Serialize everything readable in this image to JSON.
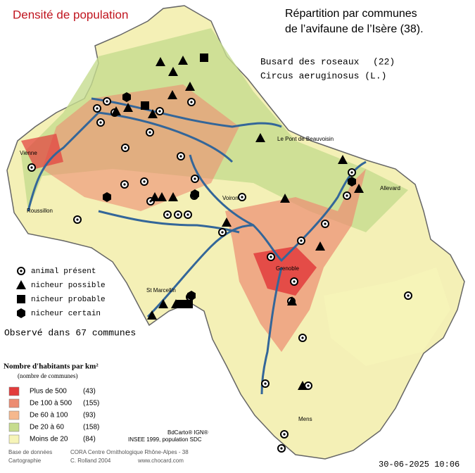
{
  "title": "Densité de population",
  "heading": [
    "Répartition par communes",
    "de l’avifaune de l’Isère (38)."
  ],
  "species": {
    "common": "Busard des roseaux",
    "count": "(22)",
    "latin": "Circus aeruginosus (L.)"
  },
  "symbol_legend": [
    "animal présent",
    "nicheur possible",
    "nicheur probable",
    "nicheur certain"
  ],
  "observed": "Observé dans 67 communes",
  "density_legend": {
    "title": "Nombre d'habitants par km²",
    "subtitle": "(nombre de communes)",
    "items": [
      {
        "label": "Plus de 500",
        "count": "(43)",
        "color": "#e23c3c"
      },
      {
        "label": "De 100 à 500",
        "count": "(155)",
        "color": "#ec8c72"
      },
      {
        "label": "De 60 à 100",
        "count": "(93)",
        "color": "#f5b88e"
      },
      {
        "label": "De 20 à 60",
        "count": "(158)",
        "color": "#c6dc8e"
      },
      {
        "label": "Moins de 20",
        "count": "(84)",
        "color": "#f6f4b8"
      }
    ]
  },
  "places": [
    "Vienne",
    "Roussillon",
    "Le Pont de Beauvoisin",
    "Allevard",
    "St Marcellin",
    "Grenoble",
    "Voiron",
    "Mens"
  ],
  "sources": [
    "BdCarto® IGN®",
    "INSEE 1999, population SDC"
  ],
  "credits": [
    {
      "label": "Base de données",
      "value": "CORA Centre Ornithologique Rhône-Alpes - 38"
    },
    {
      "label": "Cartographie",
      "value": "C. Rolland 2004"
    }
  ],
  "website": "www.chocard.com",
  "date": "30-06-2025 10:06"
}
